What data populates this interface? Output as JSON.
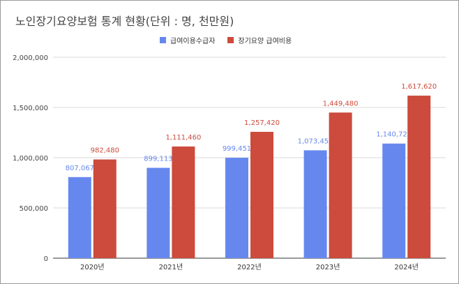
{
  "chart_data": {
    "type": "bar",
    "title": "노인장기요양보험 통계 현황(단위 : 명, 천만원)",
    "categories": [
      "2020년",
      "2021년",
      "2022년",
      "2023년",
      "2024년"
    ],
    "series": [
      {
        "name": "급여이용수급자",
        "color": "#6688ee",
        "values": [
          807067,
          899113,
          999451,
          1073452,
          1140725
        ]
      },
      {
        "name": "장기요양 급여비용",
        "color": "#cc4b3c",
        "values": [
          982480,
          1111460,
          1257420,
          1449480,
          1617620
        ]
      }
    ],
    "ylim": [
      0,
      2000000
    ],
    "yticks": [
      "0",
      "500,000",
      "1,000,000",
      "1,500,000",
      "2,000,000"
    ],
    "grid": true,
    "legend": "top"
  }
}
